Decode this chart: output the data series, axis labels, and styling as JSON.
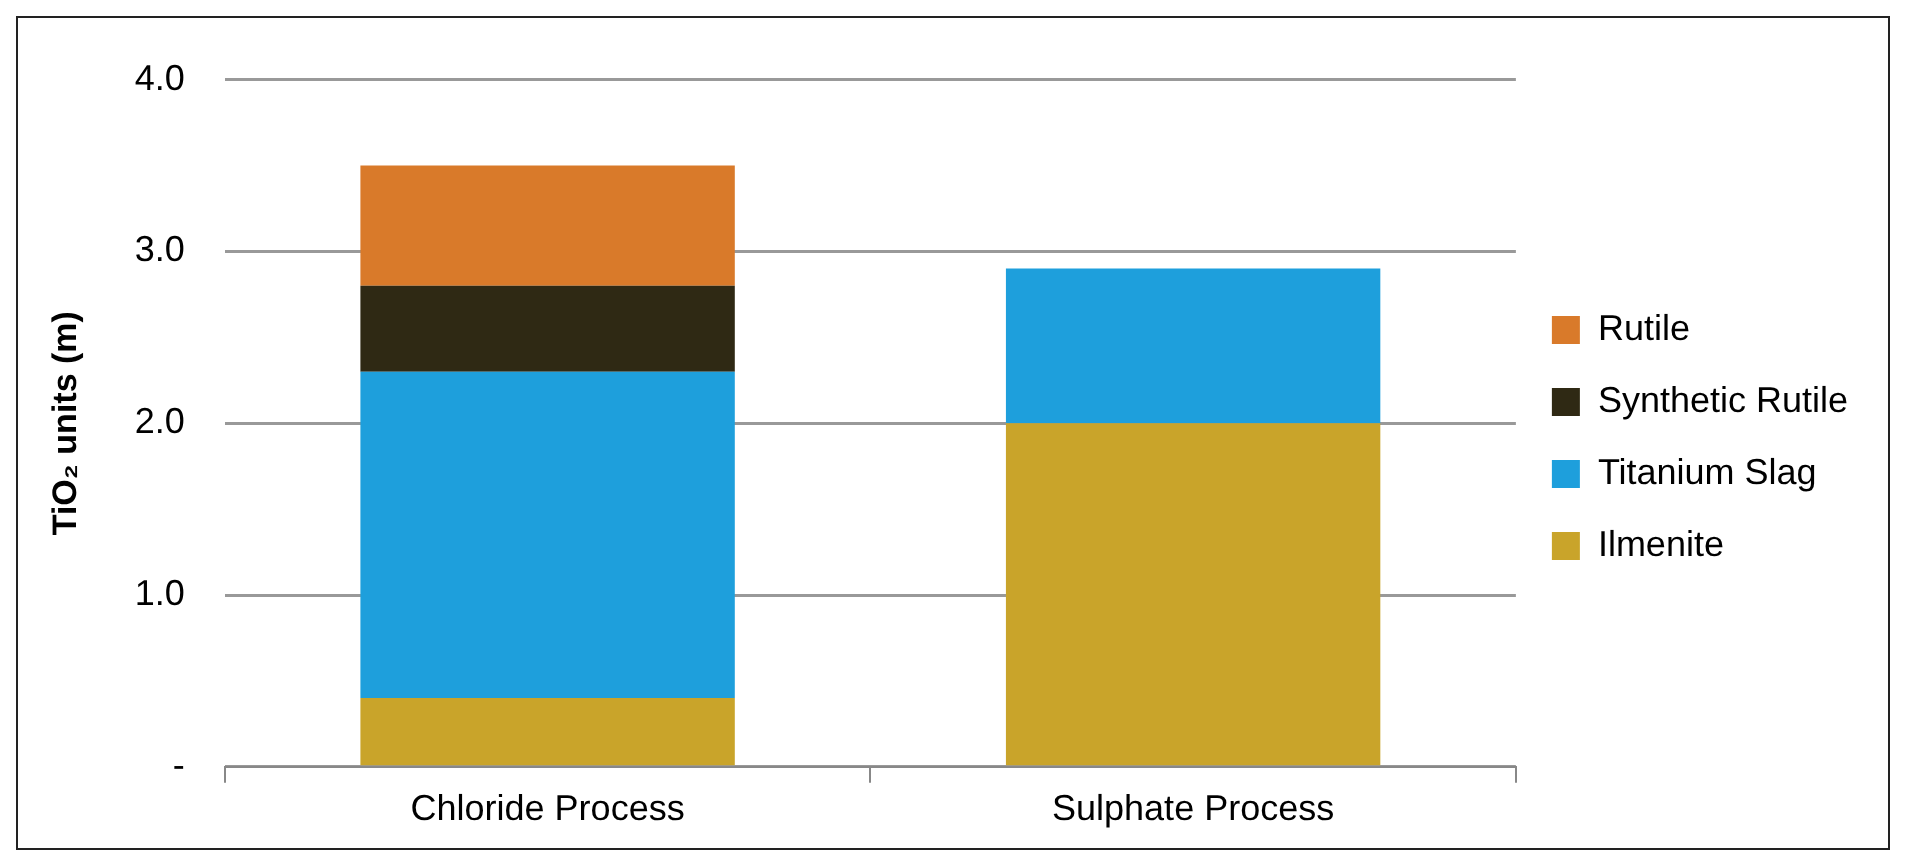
{
  "chart_data": {
    "type": "bar",
    "ylabel": "TiO₂ units (m)",
    "categories": [
      "Chloride Process",
      "Sulphate Process"
    ],
    "stacked": true,
    "series": [
      {
        "name": "Ilmenite",
        "color": "#c9a42a",
        "values": [
          0.4,
          2.0
        ]
      },
      {
        "name": "Titanium Slag",
        "color": "#1e9fdc",
        "values": [
          1.9,
          0.9
        ]
      },
      {
        "name": "Synthetic Rutile",
        "color": "#2f2914",
        "values": [
          0.5,
          0
        ]
      },
      {
        "name": "Rutile",
        "color": "#d97a2a",
        "values": [
          0.7,
          0
        ]
      }
    ],
    "ylim": [
      0,
      4
    ],
    "yticks": [
      {
        "value": 0,
        "label": "-"
      },
      {
        "value": 1,
        "label": "1.0"
      },
      {
        "value": 2,
        "label": "2.0"
      },
      {
        "value": 3,
        "label": "3.0"
      },
      {
        "value": 4,
        "label": "4.0"
      }
    ],
    "grid": "y",
    "legend": "right"
  }
}
